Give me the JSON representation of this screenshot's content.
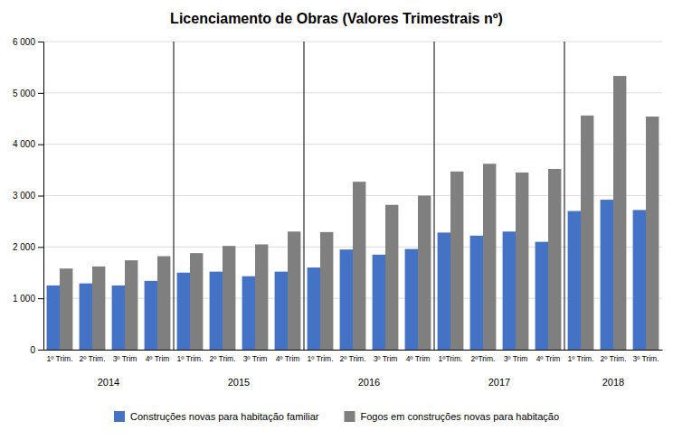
{
  "chart_data": {
    "type": "bar",
    "title": "Licenciamento de Obras (Valores Trimestrais nº)",
    "categories": [
      "1º Trim.",
      "2º Trim.",
      "3º Trim",
      "4º Trim",
      "1º Trim.",
      "2º Trim.",
      "3º Trim",
      "4º Trim",
      "1º Trim.",
      "2º Trim.",
      "3º Trim",
      "4º Trim",
      "1ºTrim.",
      "2ºTrim.",
      "3º Trim",
      "4º Trim",
      "1º Trim.",
      "2º Trim.",
      "3º Trim."
    ],
    "series": [
      {
        "name": "Construções novas para habitação familiar",
        "color": "#4472C4",
        "values": [
          1250,
          1290,
          1250,
          1340,
          1500,
          1520,
          1430,
          1520,
          1600,
          1950,
          1850,
          1960,
          2280,
          2220,
          2300,
          2100,
          2700,
          2920,
          2720
        ]
      },
      {
        "name": "Fogos em construções novas para habitação",
        "color": "#7F7F7F",
        "values": [
          1580,
          1620,
          1740,
          1820,
          1880,
          2020,
          2050,
          2300,
          2290,
          3270,
          2820,
          3000,
          3470,
          3620,
          3450,
          3520,
          4560,
          5330,
          4540
        ]
      }
    ],
    "annotations": [
      "2014",
      "2015",
      "2016",
      "2017",
      "2018"
    ],
    "ylim": [
      0,
      6000
    ],
    "yticks": [
      0,
      {
        "value": 1000,
        "label": "1 000"
      },
      {
        "value": 2000,
        "label": "2 000"
      },
      {
        "value": 3000,
        "label": "3 000"
      },
      {
        "value": 4000,
        "label": "4 000"
      },
      {
        "value": 5000,
        "label": "5 000"
      },
      {
        "value": 6000,
        "label": "6 000"
      }
    ],
    "grid": true,
    "legend": "bottom"
  }
}
